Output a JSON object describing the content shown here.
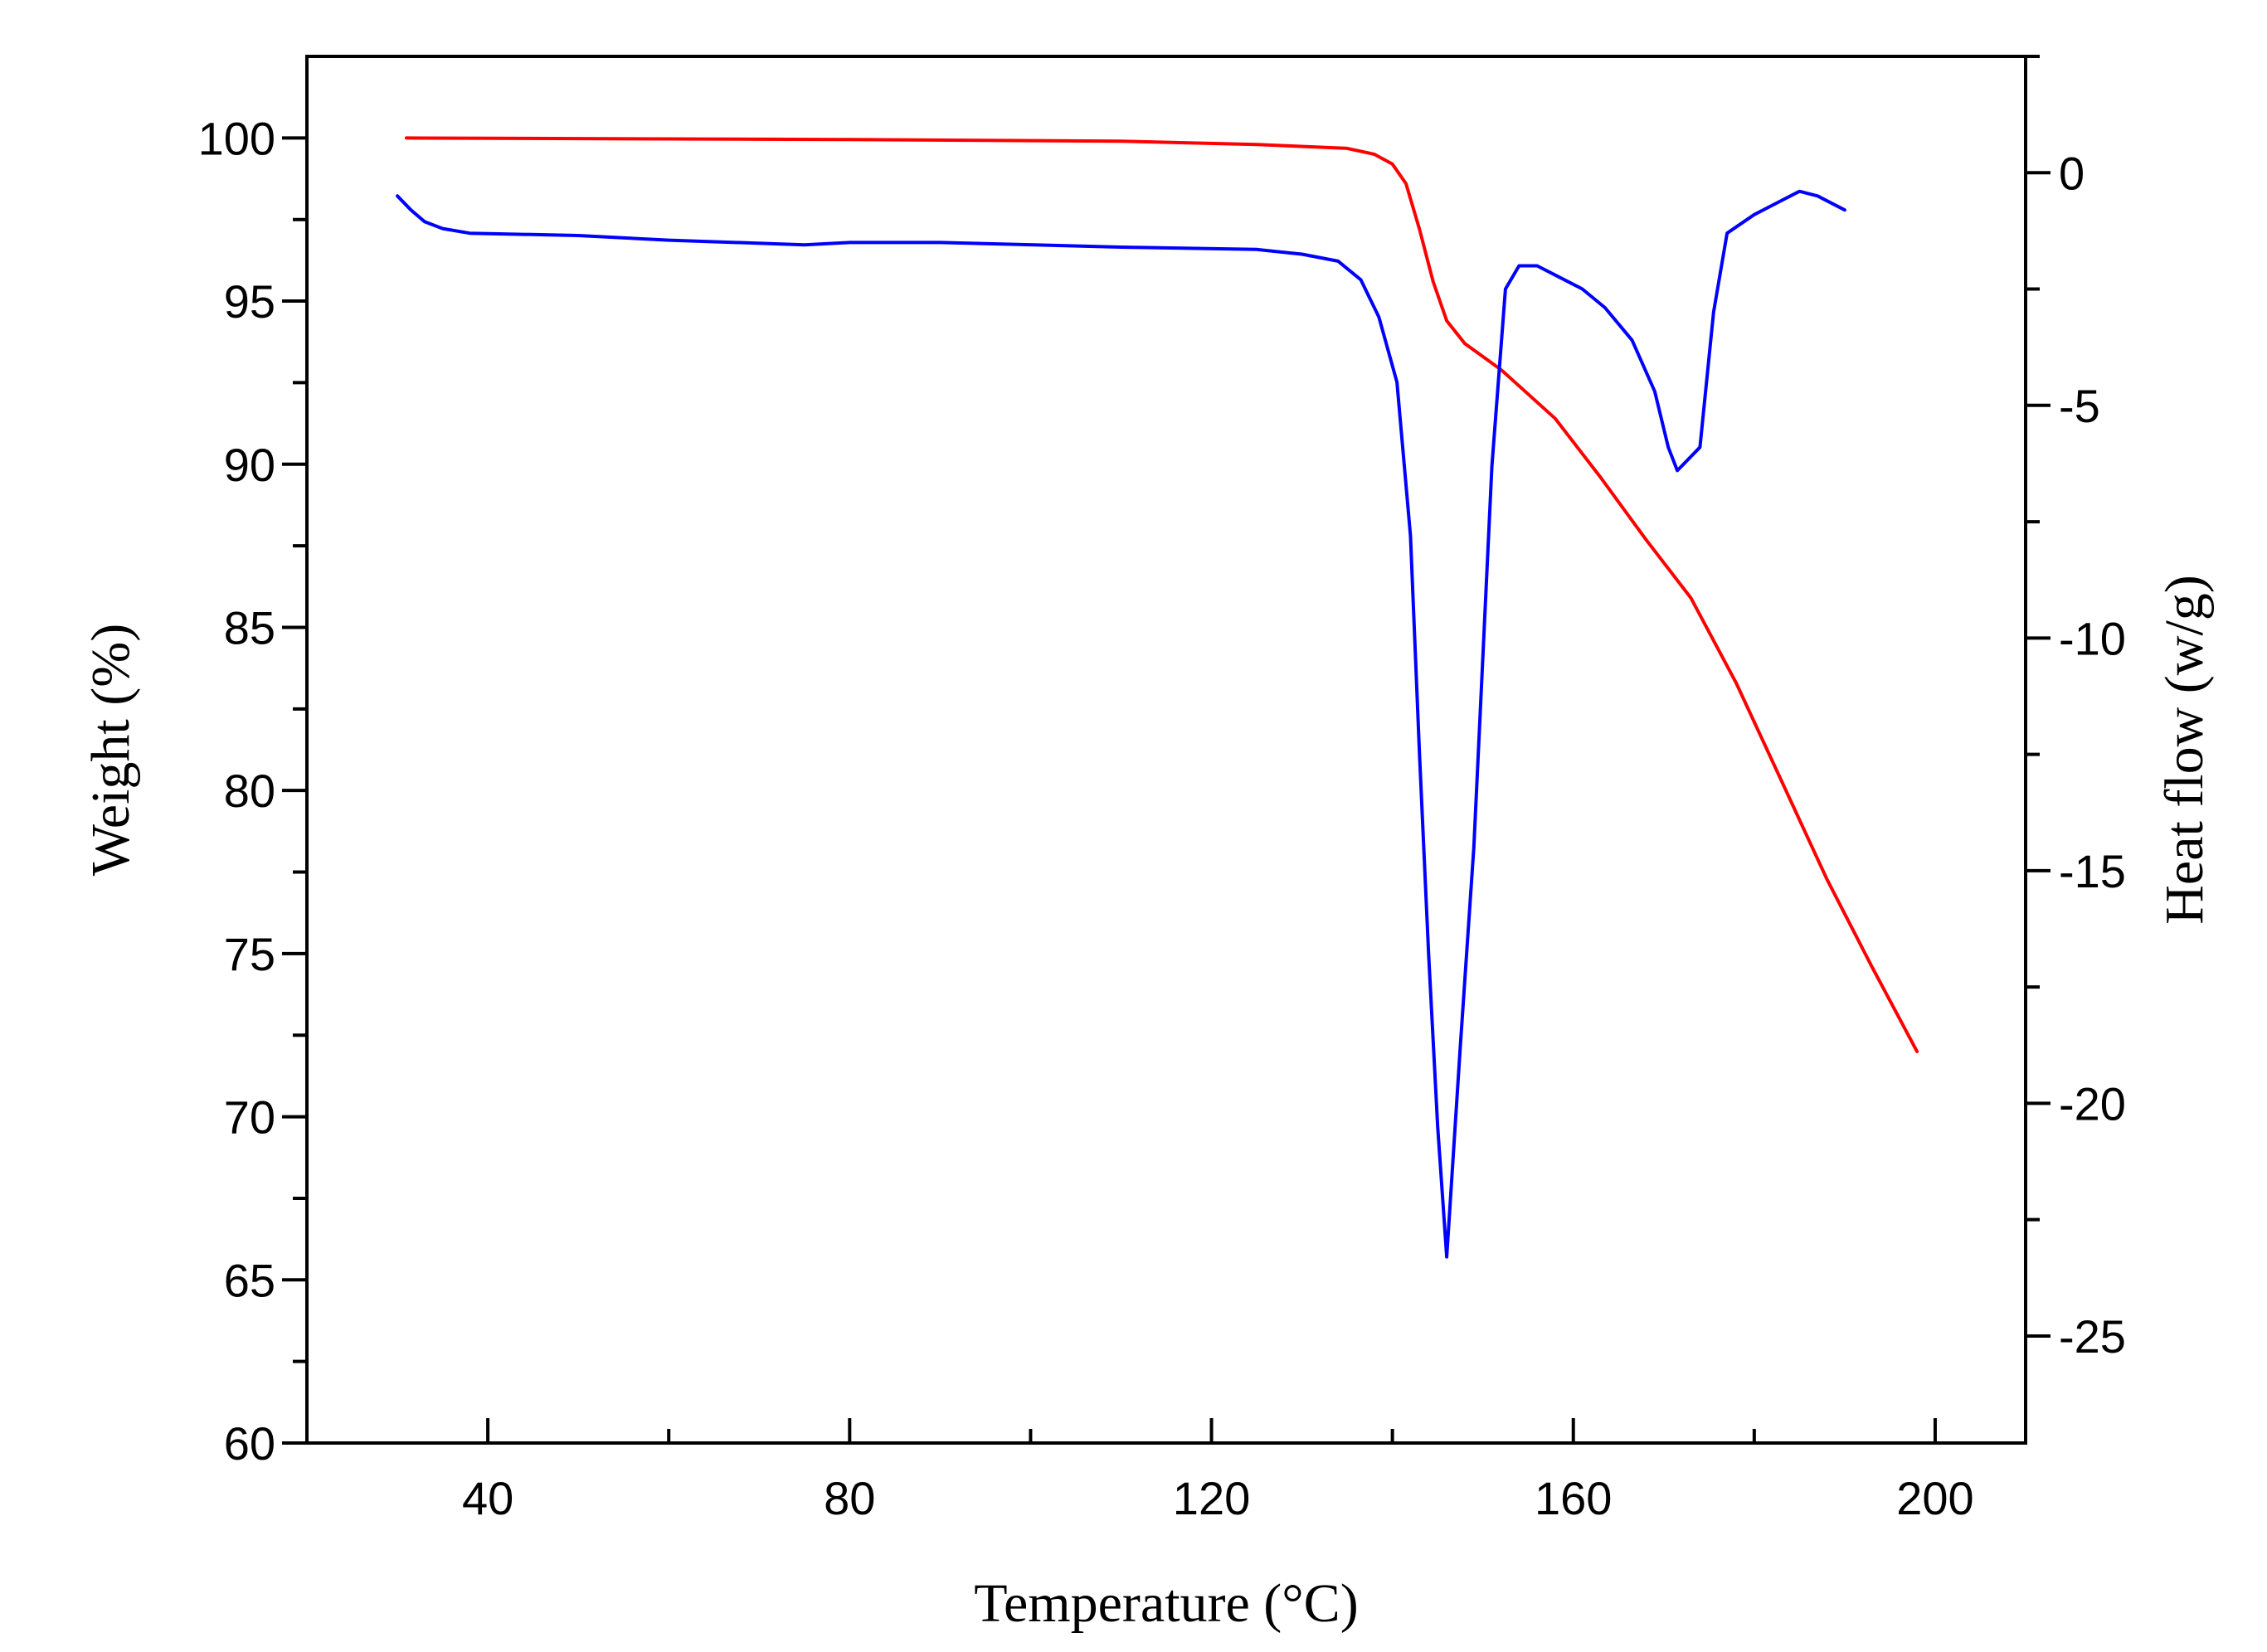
{
  "chart_data": {
    "type": "line",
    "title": "",
    "xlabel": "Temperature (°C)",
    "ylabel_left": "Weight (%)",
    "ylabel_right": "Heat flow (w/g)",
    "xlim": [
      20,
      210
    ],
    "ylim_left": [
      60,
      102.5
    ],
    "ylim_right": [
      -27.3,
      2.5
    ],
    "x_ticks": [
      40,
      80,
      120,
      160,
      200
    ],
    "x_minor_ticks": [
      60,
      100,
      140,
      180
    ],
    "y_left_ticks": [
      60,
      65,
      70,
      75,
      80,
      85,
      90,
      95,
      100
    ],
    "y_left_minor_ticks": [
      62.5,
      67.5,
      72.5,
      77.5,
      82.5,
      87.5,
      92.5,
      97.5
    ],
    "y_right_ticks": [
      -25,
      -20,
      -15,
      -10,
      -5,
      0
    ],
    "y_right_minor_ticks": [
      -22.5,
      -17.5,
      -12.5,
      -7.5,
      -2.5,
      2.5
    ],
    "grid": false,
    "series": [
      {
        "name": "Weight",
        "axis": "left",
        "color": "#ff0000",
        "x": [
          31,
          50,
          80,
          110,
          125,
          135,
          138,
          140,
          141.5,
          143,
          144.5,
          146,
          148,
          152,
          158,
          163,
          168,
          173,
          178,
          183,
          188,
          193,
          198
        ],
        "y": [
          100,
          99.98,
          99.95,
          99.9,
          99.8,
          99.68,
          99.5,
          99.2,
          98.6,
          97.2,
          95.6,
          94.4,
          93.7,
          92.9,
          91.4,
          89.6,
          87.7,
          85.9,
          83.3,
          80.3,
          77.3,
          74.6,
          72
        ]
      },
      {
        "name": "Heat flow",
        "axis": "right",
        "color": "#0000ff",
        "x": [
          30,
          31.5,
          33,
          35,
          38,
          50,
          60,
          75,
          80,
          90,
          110,
          125,
          130,
          134,
          136.5,
          138.5,
          140.5,
          142,
          143,
          144,
          145,
          146,
          147.5,
          149,
          151,
          152.5,
          154,
          156,
          158,
          161,
          163.5,
          166.5,
          169,
          170.5,
          171.5,
          172.5,
          174,
          175.5,
          177,
          180,
          183,
          185,
          187,
          190
        ],
        "y": [
          -0.5,
          -0.8,
          -1.05,
          -1.2,
          -1.3,
          -1.35,
          -1.45,
          -1.55,
          -1.5,
          -1.5,
          -1.6,
          -1.65,
          -1.75,
          -1.9,
          -2.3,
          -3.1,
          -4.5,
          -7.8,
          -12.5,
          -16.8,
          -20.5,
          -23.3,
          -18.8,
          -14.5,
          -6.3,
          -2.5,
          -2.0,
          -2.0,
          -2.2,
          -2.5,
          -2.9,
          -3.6,
          -4.7,
          -5.9,
          -6.4,
          -6.2,
          -5.9,
          -3.0,
          -1.3,
          -0.9,
          -0.6,
          -0.4,
          -0.5,
          -0.8
        ]
      }
    ]
  }
}
